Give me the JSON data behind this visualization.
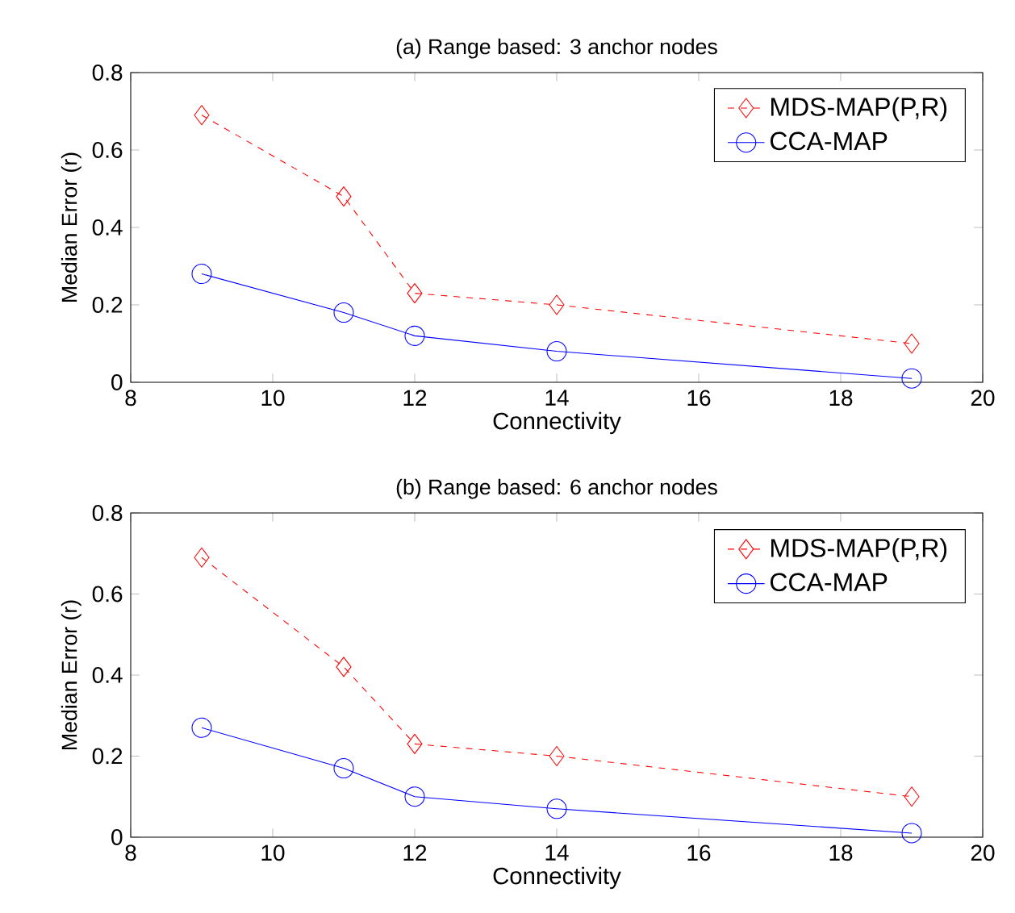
{
  "chart_data": [
    {
      "type": "line",
      "title": "(a) Range based: 3 anchor nodes",
      "xlabel": "Connectivity",
      "ylabel": "Median Error (r)",
      "x": [
        9,
        11,
        12,
        14,
        19
      ],
      "series": [
        {
          "name": "MDS-MAP(P,R)",
          "color": "#ff0000",
          "values": [
            0.69,
            0.48,
            0.23,
            0.2,
            0.1
          ],
          "marker": "diamond",
          "line_style": "dashed"
        },
        {
          "name": "CCA-MAP",
          "color": "#0000ff",
          "values": [
            0.28,
            0.18,
            0.12,
            0.08,
            0.01
          ],
          "marker": "circle",
          "line_style": "solid"
        }
      ],
      "xlim": [
        8,
        20
      ],
      "ylim": [
        0,
        0.8
      ],
      "xticks": [
        8,
        10,
        12,
        14,
        16,
        18,
        20
      ],
      "yticks": [
        0,
        0.2,
        0.4,
        0.6,
        0.8
      ],
      "grid": false,
      "legend": "top right"
    },
    {
      "type": "line",
      "title": "(b) Range based: 6 anchor nodes",
      "xlabel": "Connectivity",
      "ylabel": "Median Error (r)",
      "x": [
        9,
        11,
        12,
        14,
        19
      ],
      "series": [
        {
          "name": "MDS-MAP(P,R)",
          "color": "#ff0000",
          "values": [
            0.69,
            0.42,
            0.23,
            0.2,
            0.1
          ],
          "marker": "diamond",
          "line_style": "dashed"
        },
        {
          "name": "CCA-MAP",
          "color": "#0000ff",
          "values": [
            0.27,
            0.17,
            0.1,
            0.07,
            0.01
          ],
          "marker": "circle",
          "line_style": "solid"
        }
      ],
      "xlim": [
        8,
        20
      ],
      "ylim": [
        0,
        0.8
      ],
      "xticks": [
        8,
        10,
        12,
        14,
        16,
        18,
        20
      ],
      "yticks": [
        0,
        0.2,
        0.4,
        0.6,
        0.8
      ],
      "grid": false,
      "legend": "top right"
    }
  ]
}
